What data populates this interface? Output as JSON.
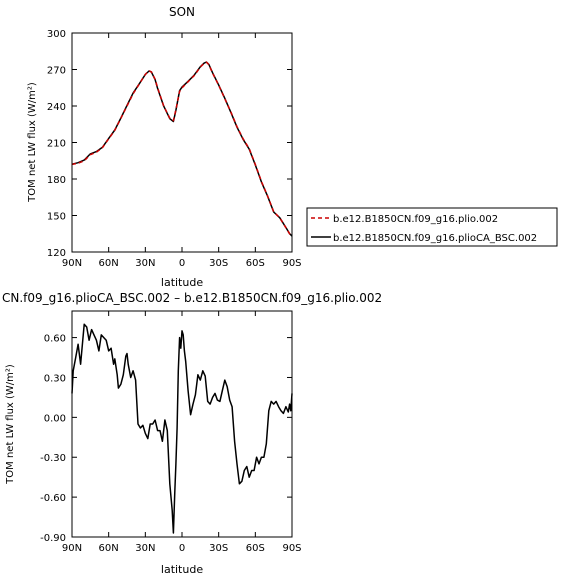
{
  "chart_data": [
    {
      "type": "line",
      "title": "SON",
      "xlabel": "latitude",
      "ylabel": "TOM net LW flux (W/m²)",
      "xlim": [
        90,
        -90
      ],
      "ylim": [
        120,
        300
      ],
      "xticks": [
        90,
        60,
        30,
        0,
        -30,
        -60,
        -90
      ],
      "xtick_labels": [
        "90N",
        "60N",
        "30N",
        "0",
        "30S",
        "60S",
        "90S"
      ],
      "yticks": [
        120,
        150,
        180,
        210,
        240,
        270,
        300
      ],
      "ytick_labels": [
        "120",
        "150",
        "180",
        "210",
        "240",
        "270",
        "300"
      ],
      "legend_position": "right",
      "series": [
        {
          "name": "b.e12.B1850CN.f09_g16.plio.002",
          "color": "#cc0000",
          "dash": "dashed",
          "x": [
            90,
            85,
            80,
            75,
            70,
            65,
            60,
            55,
            50,
            45,
            40,
            35,
            30,
            27,
            25,
            22,
            20,
            15,
            10,
            7,
            5,
            2,
            0,
            -5,
            -10,
            -15,
            -18,
            -20,
            -22,
            -25,
            -30,
            -35,
            -40,
            -45,
            -50,
            -55,
            -60,
            -65,
            -70,
            -75,
            -80,
            -85,
            -88,
            -90
          ],
          "y": [
            192,
            193,
            195,
            200,
            202,
            206,
            213,
            220,
            230,
            240,
            250,
            258,
            266,
            269,
            268,
            262,
            255,
            240,
            230,
            228,
            237,
            252,
            255,
            260,
            265,
            272,
            275,
            276,
            274,
            267,
            257,
            246,
            235,
            223,
            213,
            205,
            192,
            178,
            166,
            153,
            148,
            140,
            135,
            133
          ]
        },
        {
          "name": "b.e12.B1850CN.f09_g16.plioCA_BSC.002",
          "color": "#000000",
          "dash": "solid",
          "x": [
            90,
            85,
            80,
            75,
            70,
            65,
            60,
            55,
            50,
            45,
            40,
            35,
            30,
            27,
            25,
            22,
            20,
            15,
            10,
            7,
            5,
            2,
            0,
            -5,
            -10,
            -15,
            -18,
            -20,
            -22,
            -25,
            -30,
            -35,
            -40,
            -45,
            -50,
            -55,
            -60,
            -65,
            -70,
            -75,
            -80,
            -85,
            -88,
            -90
          ],
          "y": [
            192.2,
            193.4,
            195.5,
            200.6,
            202.5,
            206.2,
            213.4,
            220.3,
            230.1,
            240.5,
            250.6,
            258.2,
            265.9,
            268.8,
            267.9,
            261.7,
            254.5,
            239.9,
            229.6,
            227.3,
            236.5,
            252.6,
            255.5,
            260.3,
            265.4,
            272.2,
            275.2,
            276.2,
            274.1,
            267.3,
            257.2,
            246.3,
            234.7,
            222.6,
            212.6,
            204.6,
            191.6,
            177.6,
            165.9,
            152.9,
            148.1,
            140.1,
            135.1,
            133.1
          ]
        }
      ]
    },
    {
      "type": "line",
      "title": "CN.f09_g16.plioCA_BSC.002 – b.e12.B1850CN.f09_g16.plio.002",
      "xlabel": "latitude",
      "ylabel": "TOM net LW flux (W/m²)",
      "xlim": [
        90,
        -90
      ],
      "ylim": [
        -0.9,
        0.8
      ],
      "xticks": [
        90,
        60,
        30,
        0,
        -30,
        -60,
        -90
      ],
      "xtick_labels": [
        "90N",
        "60N",
        "30N",
        "0",
        "30S",
        "60S",
        "90S"
      ],
      "yticks": [
        -0.9,
        -0.6,
        -0.3,
        0.0,
        0.3,
        0.6
      ],
      "ytick_labels": [
        "-0.90",
        "-0.60",
        "-0.30",
        "0.00",
        "0.30",
        "0.60"
      ],
      "series": [
        {
          "color": "#000000",
          "x": [
            90,
            89,
            87,
            85,
            83,
            80,
            78,
            76,
            74,
            72,
            70,
            68,
            66,
            64,
            62,
            60,
            58,
            56,
            55,
            53,
            52,
            50,
            48,
            46,
            45,
            44,
            42,
            40,
            38,
            36,
            34,
            32,
            30,
            28,
            26,
            24,
            22,
            20,
            18,
            16,
            14,
            12,
            10,
            8,
            7,
            6,
            5,
            4,
            3,
            2,
            1,
            0,
            -1,
            -2,
            -3,
            -5,
            -7,
            -9,
            -11,
            -13,
            -15,
            -17,
            -19,
            -21,
            -23,
            -25,
            -27,
            -29,
            -31,
            -33,
            -35,
            -37,
            -39,
            -41,
            -43,
            -45,
            -47,
            -49,
            -51,
            -53,
            -55,
            -57,
            -59,
            -61,
            -63,
            -65,
            -67,
            -69,
            -71,
            -73,
            -75,
            -77,
            -79,
            -81,
            -83,
            -85,
            -87,
            -88,
            -89,
            -90
          ],
          "y": [
            0.18,
            0.35,
            0.45,
            0.55,
            0.4,
            0.7,
            0.68,
            0.58,
            0.66,
            0.62,
            0.58,
            0.5,
            0.62,
            0.6,
            0.58,
            0.5,
            0.52,
            0.4,
            0.44,
            0.32,
            0.22,
            0.25,
            0.32,
            0.46,
            0.48,
            0.4,
            0.3,
            0.35,
            0.28,
            -0.05,
            -0.08,
            -0.06,
            -0.12,
            -0.16,
            -0.05,
            -0.05,
            -0.02,
            -0.1,
            -0.1,
            -0.18,
            -0.02,
            -0.1,
            -0.5,
            -0.7,
            -0.87,
            -0.58,
            -0.35,
            -0.08,
            0.35,
            0.6,
            0.52,
            0.65,
            0.62,
            0.5,
            0.42,
            0.2,
            0.02,
            0.1,
            0.17,
            0.32,
            0.28,
            0.35,
            0.31,
            0.12,
            0.1,
            0.15,
            0.18,
            0.13,
            0.12,
            0.2,
            0.28,
            0.23,
            0.13,
            0.08,
            -0.18,
            -0.35,
            -0.5,
            -0.48,
            -0.4,
            -0.37,
            -0.45,
            -0.4,
            -0.4,
            -0.3,
            -0.35,
            -0.3,
            -0.3,
            -0.2,
            0.05,
            0.12,
            0.1,
            0.12,
            0.08,
            0.05,
            0.03,
            0.08,
            0.04,
            0.1,
            0.05,
            0.18
          ]
        }
      ]
    }
  ]
}
